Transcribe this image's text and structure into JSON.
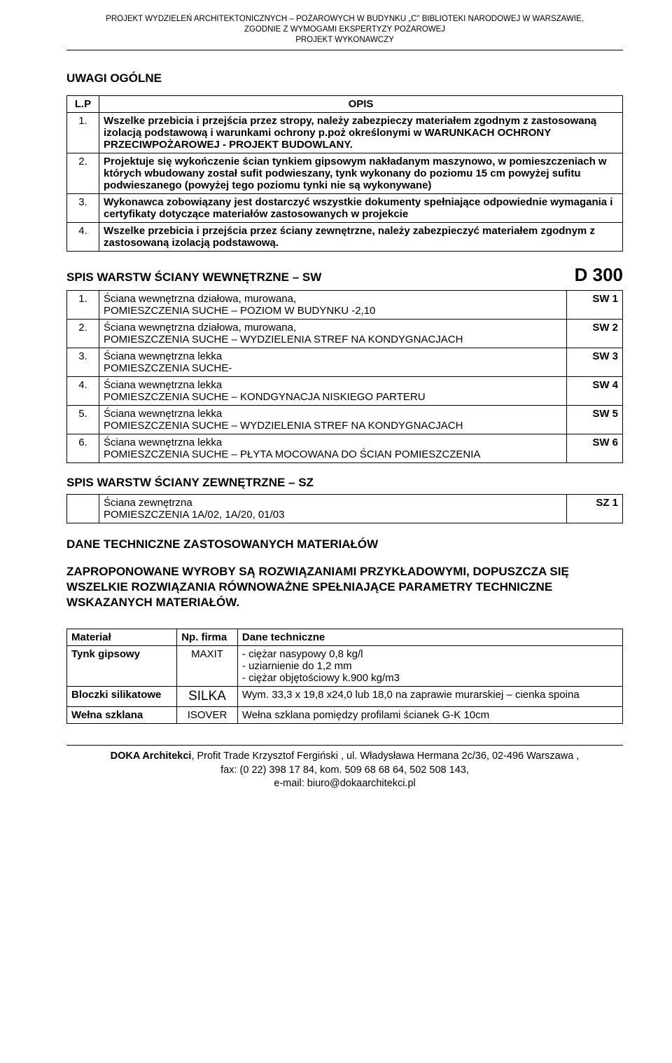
{
  "header": {
    "line1": "PROJEKT WYDZIELEŃ ARCHITEKTONICZNYCH – POŻAROWYCH W BUDYNKU „C\" BIBLIOTEKI NARODOWEJ W WARSZAWIE,",
    "line2": "ZGODNIE Z WYMOGAMI EKSPERTYZY POŻAROWEJ",
    "line3": "PROJEKT WYKONAWCZY"
  },
  "uwagi_title": "UWAGI OGÓLNE",
  "opis_table": {
    "head_lp": "L.P",
    "head_opis": "OPIS",
    "rows": [
      {
        "n": "1.",
        "text": "Wszelke przebicia i przejścia przez stropy, należy zabezpieczy materiałem zgodnym z zastosowaną izolacją podstawową i warunkami ochrony p.poż określonymi w WARUNKACH OCHRONY PRZECIWPOŻAROWEJ  - PROJEKT BUDOWLANY."
      },
      {
        "n": "2.",
        "text": "Projektuje się wykończenie ścian  tynkiem gipsowym nakładanym maszynowo, w pomieszczeniach w których wbudowany został sufit podwieszany, tynk wykonany do poziomu 15 cm powyżej sufitu podwieszanego (powyżej tego poziomu tynki nie są wykonywane)"
      },
      {
        "n": "3.",
        "text": "Wykonawca zobowiązany jest dostarczyć wszystkie dokumenty spełniające odpowiednie wymagania i certyfikaty dotyczące materiałów zastosowanych w projekcie"
      },
      {
        "n": "4.",
        "text": "Wszelke przebicia i przejścia przez ściany zewnętrzne, należy zabezpieczyć materiałem zgodnym z zastosowaną izolacją podstawową."
      }
    ]
  },
  "sw": {
    "title": "SPIS WARSTW ŚCIANY WEWNĘTRZNE – SW",
    "dcode": "D 300",
    "rows": [
      {
        "n": "1.",
        "desc": "Ściana wewnętrzna działowa, murowana,\nPOMIESZCZENIA SUCHE – POZIOM W BUDYNKU -2,10",
        "code": "SW 1"
      },
      {
        "n": "2.",
        "desc": "Ściana wewnętrzna działowa, murowana,\nPOMIESZCZENIA SUCHE – WYDZIELENIA STREF NA KONDYGNACJACH",
        "code": "SW 2"
      },
      {
        "n": "3.",
        "desc": "Ściana wewnętrzna lekka\nPOMIESZCZENIA SUCHE-",
        "code": "SW 3"
      },
      {
        "n": "4.",
        "desc": "Ściana wewnętrzna lekka\nPOMIESZCZENIA SUCHE – KONDGYNACJA NISKIEGO PARTERU",
        "code": "SW 4"
      },
      {
        "n": "5.",
        "desc": "Ściana wewnętrzna lekka\nPOMIESZCZENIA SUCHE – WYDZIELENIA STREF NA KONDYGNACJACH",
        "code": "SW 5"
      },
      {
        "n": "6.",
        "desc": "Ściana wewnętrzna lekka\nPOMIESZCZENIA SUCHE – PŁYTA MOCOWANA DO ŚCIAN POMIESZCZENIA",
        "code": "SW 6"
      }
    ]
  },
  "sz": {
    "title": "SPIS WARSTW ŚCIANY ZEWNĘTRZNE – SZ",
    "rows": [
      {
        "n": "",
        "desc": "Ściana zewnętrzna\nPOMIESZCZENIA 1A/02, 1A/20, 01/03",
        "code": "SZ 1"
      }
    ]
  },
  "tech": {
    "title": "DANE TECHNICZNE ZASTOSOWANYCH MATERIAŁÓW",
    "note": "ZAPROPONOWANE WYROBY SĄ ROZWIĄZANIAMI PRZYKŁADOWYMI, DOPUSZCZA SIĘ WSZELKIE ROZWIĄZANIA RÓWNOWAŻNE SPEŁNIAJĄCE PARAMETRY TECHNICZNE WSKAZANYCH MATERIAŁÓW."
  },
  "materials": {
    "head": {
      "c1": "Materiał",
      "c2": "Np. firma",
      "c3": "Dane techniczne"
    },
    "rows": [
      {
        "mat": "Tynk gipsowy",
        "firm": "MAXIT",
        "big": false,
        "dane": "- ciężar nasypowy 0,8 kg/l\n- uziarnienie do 1,2 mm\n- ciężar objętościowy k.900 kg/m3"
      },
      {
        "mat": "Bloczki silikatowe",
        "firm": "SILKA",
        "big": true,
        "dane": "Wym. 33,3 x 19,8 x24,0 lub 18,0 na zaprawie murarskiej – cienka spoina"
      },
      {
        "mat": "Wełna szklana",
        "firm": "ISOVER",
        "big": false,
        "dane": "Wełna szklana pomiędzy profilami ścianek G-K 10cm"
      }
    ]
  },
  "footer": {
    "line1a": "DOKA Architekci",
    "line1b": ", Profit Trade Krzysztof Fergiński , ul. Władysława Hermana 2c/36, 02-496 Warszawa ,",
    "line2": "fax: (0 22) 398 17 84, kom. 509 68 68 64,  502 508 143,",
    "line3": "e-mail: biuro@dokaarchitekci.pl"
  }
}
